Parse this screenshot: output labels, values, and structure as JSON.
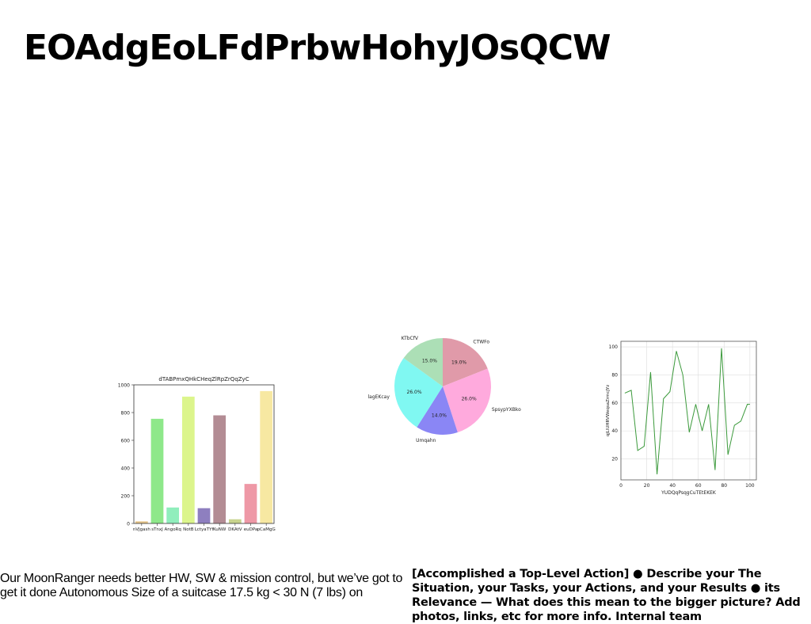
{
  "slide": {
    "title": "EOAdgEoLFdPrbwHohyJOsQCW",
    "body_left": "Our MoonRanger needs better HW, SW & mission control, but we’ve got to get it done Autonomous Size of a suitcase 17.5 kg < 30 N (7 lbs) on",
    "body_right": "[Accomplished a Top-Level Action] ● Describe your The Situation, your Tasks, your Actions, and your Results ● its Relevance — What does this mean to the bigger picture? Add photos, links, etc for more info. Internal team"
  },
  "chart_data": [
    {
      "type": "bar",
      "title": "dTABPmxQHkCHeqZlRpZrQqZyC",
      "categories": [
        "nVJgash",
        "sTnxJ",
        "AngoRq",
        "NotB",
        "LctyaTYf",
        "KuNW",
        "DKAtV",
        "euDPa",
        "pCaMgG"
      ],
      "values": [
        15,
        755,
        115,
        915,
        110,
        780,
        30,
        285,
        955
      ],
      "colors": [
        "#e6c58a",
        "#8ee88a",
        "#90eebc",
        "#dcf58c",
        "#8e7fbf",
        "#b38c94",
        "#c8d48e",
        "#ee98a6",
        "#f7e8a2"
      ],
      "ylim": [
        0,
        1000
      ],
      "yticks": [
        0,
        200,
        400,
        600,
        800,
        1000
      ]
    },
    {
      "type": "pie",
      "labels": [
        "CTWFo",
        "SpsypYXBko",
        "Umqahn",
        "lagEKcay",
        "KTbCfV"
      ],
      "values": [
        19.0,
        26.0,
        14.0,
        26.0,
        15.0
      ],
      "percent_labels": [
        "19.0%",
        "26.0%",
        "14.0%",
        "26.0%",
        "15.0%"
      ],
      "colors": [
        "#e09aa9",
        "#ffaadd",
        "#8a86f5",
        "#80f8f2",
        "#acdfb6"
      ]
    },
    {
      "type": "line",
      "xlabel": "YUDQqPsqgCuTEtEKEK",
      "ylabel": "qjLlUHRVWeqsaZrmcJYz",
      "x": [
        3,
        8,
        13,
        18,
        23,
        28,
        33,
        38,
        43,
        48,
        53,
        58,
        63,
        68,
        73,
        78,
        83,
        88,
        93,
        98,
        100
      ],
      "y": [
        67,
        69,
        26,
        29,
        82,
        9,
        63,
        68,
        97,
        80,
        39,
        59,
        40,
        59,
        12,
        99,
        23,
        44,
        47,
        59,
        59
      ],
      "xlim": [
        0,
        105
      ],
      "ylim": [
        5,
        104
      ],
      "xticks": [
        0,
        20,
        40,
        60,
        80,
        100
      ],
      "yticks": [
        20,
        40,
        60,
        80,
        100
      ],
      "grid": true,
      "color": "#3c9a3c"
    }
  ]
}
